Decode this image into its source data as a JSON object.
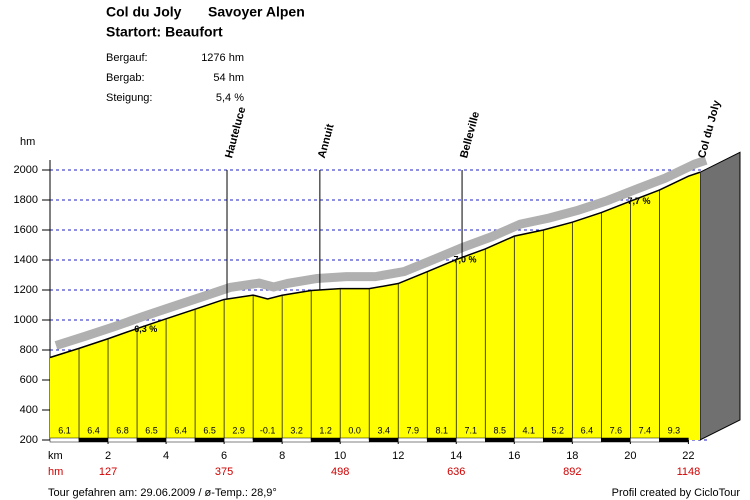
{
  "chart_data": {
    "type": "elevation-profile",
    "title": "Col du Joly",
    "region": "Savoyer Alpen",
    "subtitle": "Startort: Beaufort",
    "stats": [
      {
        "label": "Bergauf:",
        "value": "1276 hm"
      },
      {
        "label": "Bergab:",
        "value": "54 hm"
      },
      {
        "label": "Steigung:",
        "value": "5,4 %"
      }
    ],
    "y_label": "hm",
    "x_label": "km",
    "x": [
      0,
      1,
      2,
      3,
      4,
      5,
      6,
      7,
      7.5,
      8,
      9,
      10,
      11,
      12,
      13,
      14,
      15,
      16,
      17,
      18,
      19,
      20,
      21,
      22,
      22.4
    ],
    "values": [
      750,
      811,
      875,
      943,
      1008,
      1072,
      1137,
      1166,
      1140,
      1165,
      1197,
      1209,
      1209,
      1243,
      1322,
      1403,
      1474,
      1559,
      1600,
      1652,
      1716,
      1792,
      1866,
      1959,
      1985
    ],
    "color": "#ffff00",
    "xlim": [
      0,
      22.4
    ],
    "ylim": [
      200,
      2000
    ],
    "xticks": [
      2,
      4,
      6,
      8,
      10,
      12,
      14,
      16,
      18,
      20,
      22
    ],
    "yticks": [
      200,
      400,
      600,
      800,
      1000,
      1200,
      1400,
      1600,
      1800,
      2000
    ],
    "grid": true,
    "gradients": {
      "values": [
        6.1,
        6.4,
        6.8,
        6.5,
        6.4,
        6.5,
        2.9,
        -0.1,
        3.2,
        1.2,
        0.0,
        3.4,
        7.9,
        8.1,
        7.1,
        8.5,
        4.1,
        5.2,
        6.4,
        7.6,
        7.4,
        9.3
      ],
      "value_labels": [
        "6.1",
        "6.4",
        "6.8",
        "6.5",
        "6.4",
        "6.5",
        "2.9",
        "-0.1",
        "3.2",
        "1.2",
        "0.0",
        "3.4",
        "7.9",
        "8.1",
        "7.1",
        "8.5",
        "4.1",
        "5.2",
        "6.4",
        "7.6",
        "7.4",
        "9.3"
      ]
    },
    "hm_label": "hm",
    "hm_cumulative": {
      "x": [
        2,
        6,
        10,
        14,
        18,
        22
      ],
      "values": [
        127,
        375,
        498,
        636,
        892,
        1148
      ]
    },
    "waypoints": [
      {
        "name": "Hauteluce",
        "x": 6.1
      },
      {
        "name": "Annuit",
        "x": 9.3
      },
      {
        "name": "Belleville",
        "x": 14.2
      },
      {
        "name": "Col du Joly",
        "x": 22.4
      }
    ],
    "segment_labels": [
      {
        "x": 3.3,
        "label": "6,3 %"
      },
      {
        "x": 14.3,
        "label": "7,0 %"
      },
      {
        "x": 20.3,
        "label": "7,7 %"
      }
    ],
    "footer_left": "Tour gefahren am: 29.06.2009  /  ø-Temp.: 28,9°",
    "footer_right": "Profil created by CicloTour"
  }
}
